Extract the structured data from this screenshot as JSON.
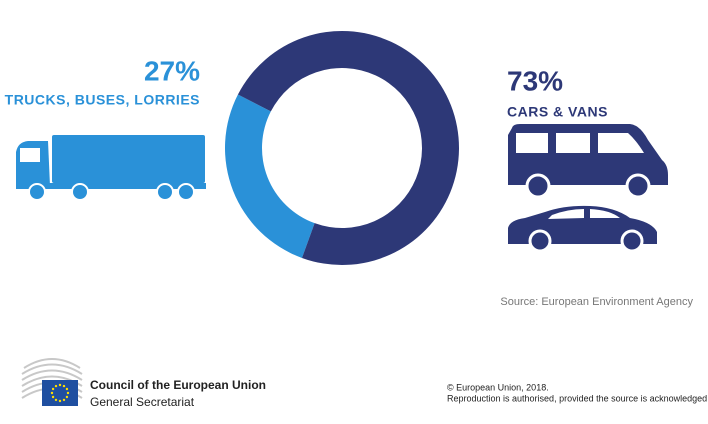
{
  "chart_data": {
    "type": "pie",
    "categories": [
      "TRUCKS, BUSES, LORRIES",
      "CARS & VANS"
    ],
    "values": [
      27,
      73
    ],
    "value_labels": [
      "27%",
      "73%"
    ],
    "colors": [
      "#2a91d8",
      "#2d3877"
    ],
    "donut": true
  },
  "source": "Source: European Environment Agency",
  "footer": {
    "organization": "Council of the European Union",
    "department": "General Secretariat",
    "copyright": "© European Union, 2018.",
    "notice": "Reproduction is authorised, provided the source is acknowledged"
  }
}
